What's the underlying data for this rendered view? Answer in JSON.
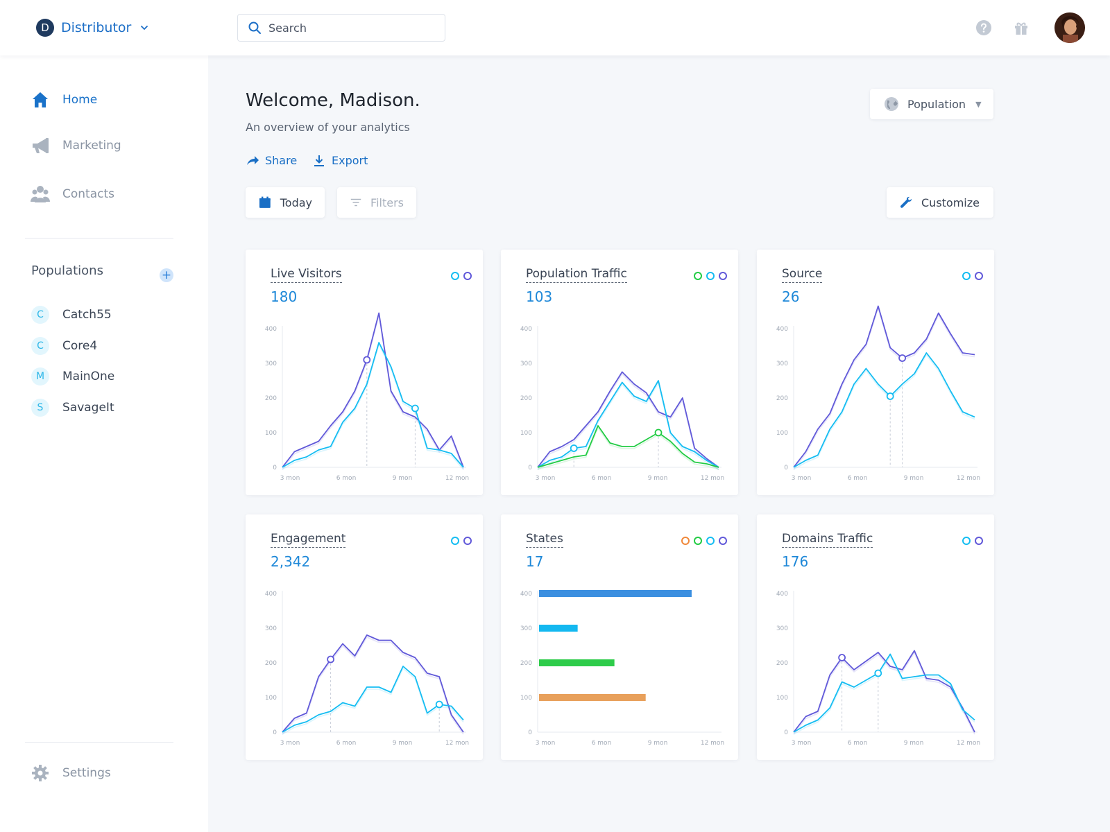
{
  "topbar": {
    "logo_letter": "D",
    "app_name": "Distributor",
    "search_placeholder": "Search"
  },
  "sidebar": {
    "nav": [
      {
        "label": "Home",
        "icon": "home-icon",
        "active": true
      },
      {
        "label": "Marketing",
        "icon": "megaphone-icon",
        "active": false
      },
      {
        "label": "Contacts",
        "icon": "contacts-icon",
        "active": false
      }
    ],
    "populations_heading": "Populations",
    "add_label": "+",
    "populations": [
      {
        "badge": "C",
        "label": "Catch55"
      },
      {
        "badge": "C",
        "label": "Core4"
      },
      {
        "badge": "M",
        "label": "MainOne"
      },
      {
        "badge": "S",
        "label": "SavageIt"
      }
    ],
    "settings_label": "Settings"
  },
  "main": {
    "welcome": "Welcome, Madison.",
    "subtitle": "An overview of your analytics",
    "share_label": "Share",
    "export_label": "Export",
    "today_label": "Today",
    "filters_label": "Filters",
    "customize_label": "Customize",
    "population_selector": "Population"
  },
  "colors": {
    "purple": "#6159d9",
    "cyan": "#15bdf2",
    "green": "#22cc44",
    "orange": "#f0883a",
    "blue_bar": "#3b8fe0",
    "cyan_bar": "#14b8f0",
    "green_bar": "#2ecc4a",
    "orange_bar": "#e8a05b"
  },
  "cards": [
    {
      "title": "Live Visitors",
      "value": "180"
    },
    {
      "title": "Population Traffic",
      "value": "103"
    },
    {
      "title": "Source",
      "value": "26"
    },
    {
      "title": "Engagement",
      "value": "2,342"
    },
    {
      "title": "States",
      "value": "17"
    },
    {
      "title": "Domains Traffic",
      "value": "176"
    }
  ],
  "chart_data": [
    {
      "type": "line",
      "title": "Live Visitors",
      "x_tick_labels": [
        "3 mon",
        "6 mon",
        "9 mon",
        "12 mon"
      ],
      "y_ticks": [
        0,
        100,
        200,
        300,
        400
      ],
      "ylim": [
        0,
        400
      ],
      "x": [
        0,
        1,
        2,
        3,
        4,
        5,
        6,
        7,
        8,
        9,
        10,
        11,
        12,
        13,
        14,
        15
      ],
      "series": [
        {
          "color": "purple",
          "values": [
            0,
            45,
            60,
            75,
            120,
            160,
            220,
            310,
            445,
            220,
            160,
            145,
            110,
            50,
            90,
            0
          ]
        },
        {
          "color": "cyan",
          "values": [
            0,
            20,
            30,
            50,
            60,
            130,
            170,
            240,
            360,
            290,
            190,
            170,
            55,
            50,
            40,
            0
          ]
        }
      ],
      "markers": [
        {
          "series": 0,
          "x": 7
        },
        {
          "series": 1,
          "x": 11
        }
      ]
    },
    {
      "type": "line",
      "title": "Population Traffic",
      "x_tick_labels": [
        "3 mon",
        "6 mon",
        "9 mon",
        "12 mon"
      ],
      "y_ticks": [
        0,
        100,
        200,
        300,
        400
      ],
      "ylim": [
        0,
        400
      ],
      "x": [
        0,
        1,
        2,
        3,
        4,
        5,
        6,
        7,
        8,
        9,
        10,
        11,
        12,
        13,
        14,
        15
      ],
      "series": [
        {
          "color": "purple",
          "values": [
            0,
            45,
            60,
            80,
            120,
            160,
            220,
            275,
            240,
            215,
            160,
            145,
            200,
            55,
            25,
            0
          ]
        },
        {
          "color": "cyan",
          "values": [
            0,
            20,
            30,
            55,
            60,
            135,
            190,
            245,
            205,
            190,
            250,
            100,
            60,
            45,
            20,
            0
          ]
        },
        {
          "color": "green",
          "values": [
            0,
            10,
            20,
            30,
            35,
            120,
            70,
            60,
            60,
            80,
            100,
            75,
            40,
            15,
            10,
            0
          ]
        }
      ],
      "markers": [
        {
          "series": 1,
          "x": 3
        },
        {
          "series": 2,
          "x": 10
        }
      ]
    },
    {
      "type": "line",
      "title": "Source",
      "x_tick_labels": [
        "3 mon",
        "6 mon",
        "9 mon",
        "12 mon"
      ],
      "y_ticks": [
        0,
        100,
        200,
        300,
        400
      ],
      "ylim": [
        0,
        400
      ],
      "x": [
        0,
        1,
        2,
        3,
        4,
        5,
        6,
        7,
        8,
        9,
        10,
        11,
        12,
        13,
        14,
        15
      ],
      "series": [
        {
          "color": "purple",
          "values": [
            0,
            45,
            110,
            155,
            240,
            310,
            355,
            465,
            345,
            315,
            330,
            370,
            445,
            385,
            330,
            325
          ]
        },
        {
          "color": "cyan",
          "values": [
            0,
            20,
            35,
            110,
            160,
            240,
            285,
            240,
            205,
            240,
            270,
            330,
            285,
            220,
            160,
            145
          ]
        }
      ],
      "markers": [
        {
          "series": 0,
          "x": 9
        },
        {
          "series": 1,
          "x": 8
        }
      ]
    },
    {
      "type": "line",
      "title": "Engagement",
      "x_tick_labels": [
        "3 mon",
        "6 mon",
        "9 mon",
        "12 mon"
      ],
      "y_ticks": [
        0,
        100,
        200,
        300,
        400
      ],
      "ylim": [
        0,
        400
      ],
      "x": [
        0,
        1,
        2,
        3,
        4,
        5,
        6,
        7,
        8,
        9,
        10,
        11,
        12,
        13,
        14,
        15
      ],
      "series": [
        {
          "color": "purple",
          "values": [
            0,
            40,
            55,
            160,
            210,
            255,
            220,
            280,
            265,
            265,
            230,
            215,
            170,
            160,
            50,
            0
          ]
        },
        {
          "color": "cyan",
          "values": [
            0,
            20,
            30,
            50,
            60,
            85,
            75,
            130,
            130,
            115,
            190,
            160,
            55,
            80,
            75,
            35
          ]
        }
      ],
      "markers": [
        {
          "series": 0,
          "x": 4
        },
        {
          "series": 1,
          "x": 13
        }
      ]
    },
    {
      "type": "bar",
      "orientation": "horizontal",
      "title": "States",
      "x_tick_labels": [
        "3 mon",
        "6 mon",
        "9 mon",
        "12 mon"
      ],
      "y_ticks": [
        0,
        100,
        200,
        300,
        400
      ],
      "categories": [
        400,
        300,
        200,
        100
      ],
      "values": [
        0.83,
        0.21,
        0.41,
        0.58
      ],
      "bar_colors": [
        "blue_bar",
        "cyan_bar",
        "green_bar",
        "orange_bar"
      ]
    },
    {
      "type": "line",
      "title": "Domains Traffic",
      "x_tick_labels": [
        "3 mon",
        "6 mon",
        "9 mon",
        "12 mon"
      ],
      "y_ticks": [
        0,
        100,
        200,
        300,
        400
      ],
      "ylim": [
        0,
        400
      ],
      "x": [
        0,
        1,
        2,
        3,
        4,
        5,
        6,
        7,
        8,
        9,
        10,
        11,
        12,
        13,
        14,
        15
      ],
      "series": [
        {
          "color": "purple",
          "values": [
            0,
            45,
            60,
            165,
            215,
            180,
            205,
            230,
            190,
            180,
            235,
            155,
            150,
            130,
            70,
            0
          ]
        },
        {
          "color": "cyan",
          "values": [
            0,
            20,
            35,
            70,
            145,
            130,
            150,
            170,
            225,
            155,
            160,
            165,
            165,
            140,
            65,
            35
          ]
        }
      ],
      "markers": [
        {
          "series": 0,
          "x": 4
        },
        {
          "series": 1,
          "x": 7
        }
      ]
    }
  ]
}
